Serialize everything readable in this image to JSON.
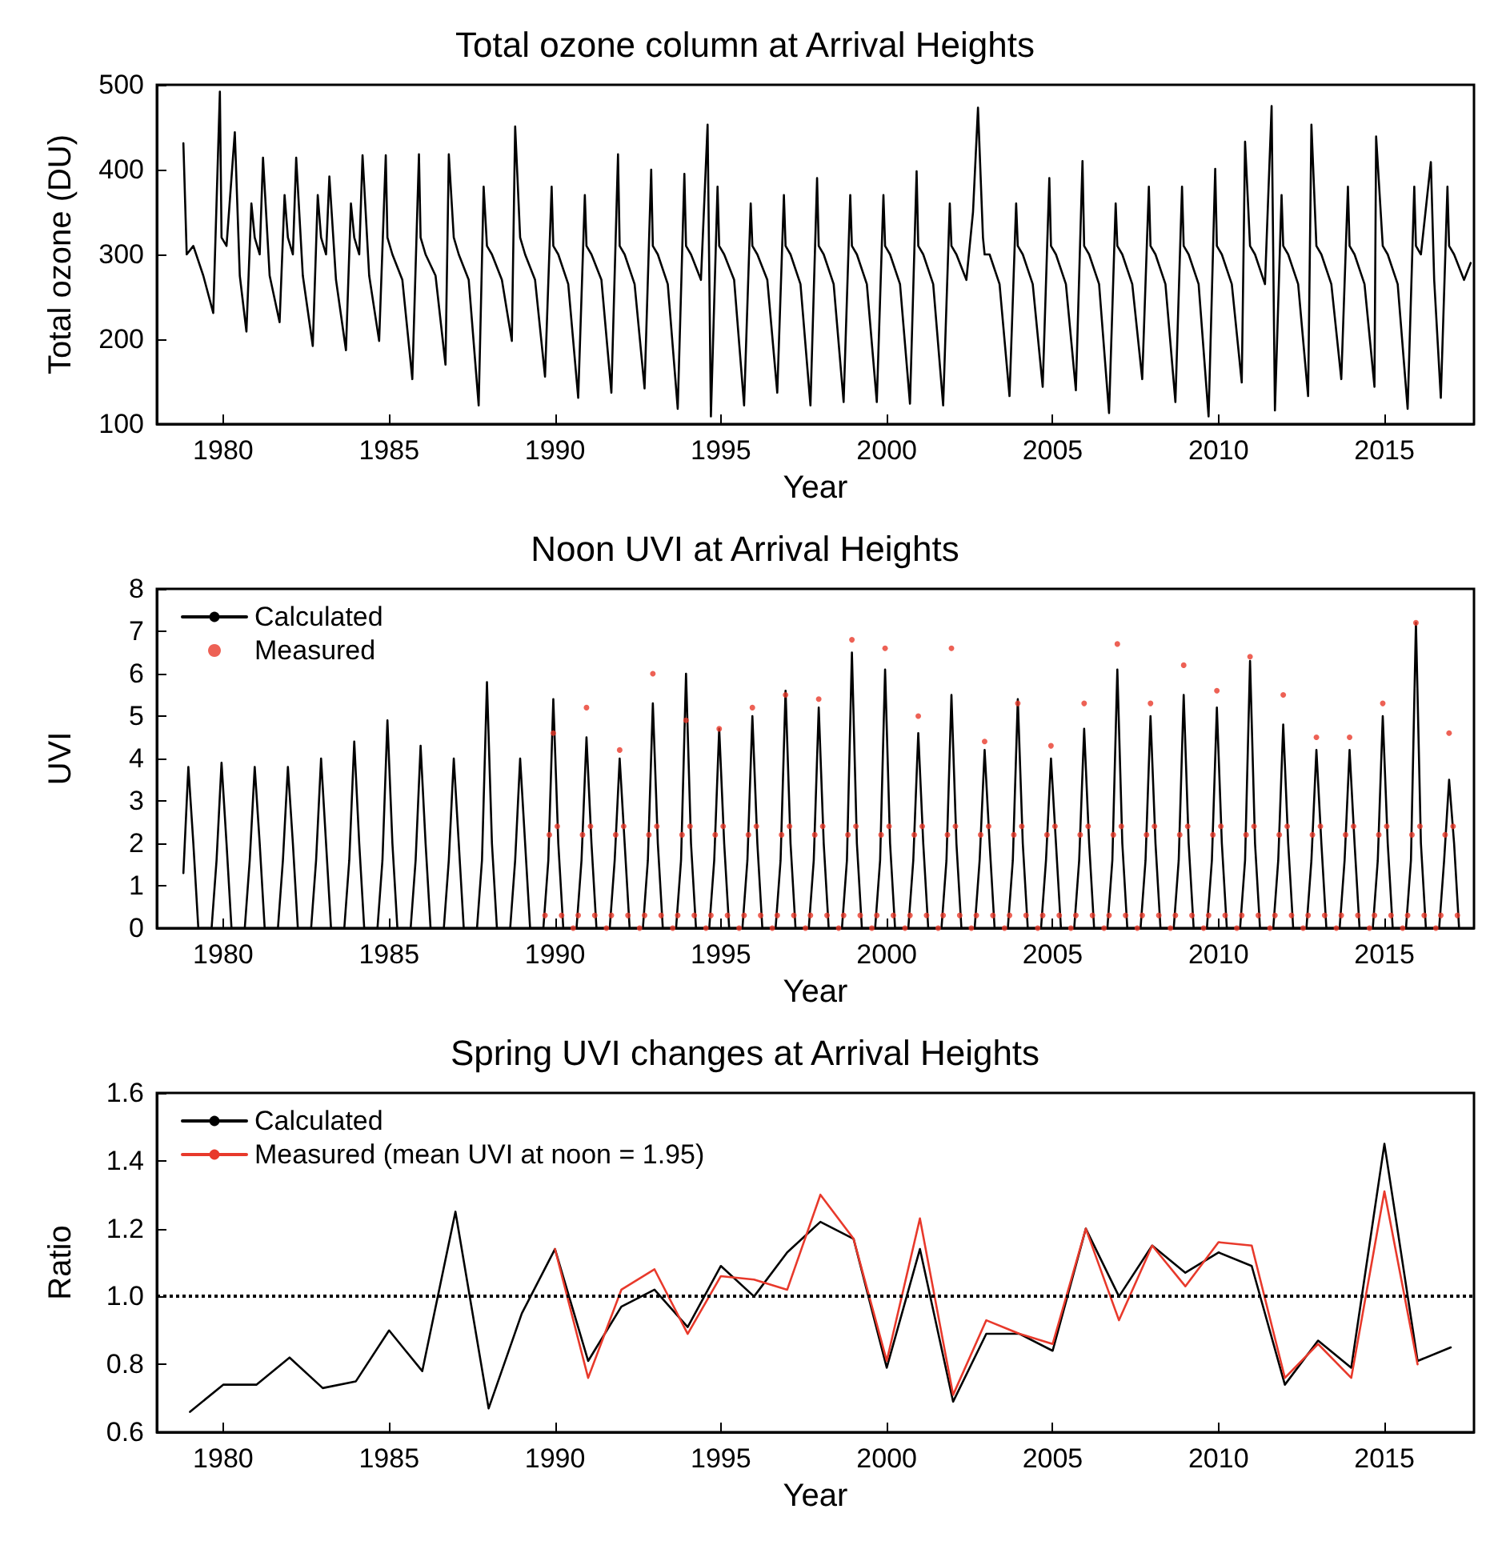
{
  "chart_data": [
    {
      "type": "line",
      "title": "Total ozone column at Arrival Heights",
      "xlabel": "Year",
      "ylabel": "Total ozone (DU)",
      "xlim": [
        1978,
        2017.7
      ],
      "xticks": [
        1980,
        1985,
        1990,
        1995,
        2000,
        2005,
        2010,
        2015
      ],
      "ylim": [
        100,
        500
      ],
      "yticks": [
        100,
        200,
        300,
        400,
        500
      ],
      "grid": false,
      "legend": false,
      "series": [
        {
          "color": "#000000",
          "x": [
            1978.8,
            1978.9,
            1979.1,
            1979.4,
            1979.7,
            1979.9,
            1979.95,
            1980.1,
            1980.35,
            1980.5,
            1980.7,
            1980.85,
            1980.95,
            1981.1,
            1981.2,
            1981.4,
            1981.7,
            1981.85,
            1981.95,
            1982.1,
            1982.2,
            1982.4,
            1982.7,
            1982.85,
            1982.95,
            1983.1,
            1983.2,
            1983.4,
            1983.7,
            1983.85,
            1983.95,
            1984.1,
            1984.2,
            1984.4,
            1984.7,
            1984.9,
            1984.95,
            1985.1,
            1985.4,
            1985.7,
            1985.9,
            1985.95,
            1986.1,
            1986.4,
            1986.7,
            1986.8,
            1986.95,
            1987.1,
            1987.4,
            1987.7,
            1987.85,
            1987.95,
            1988.1,
            1988.4,
            1988.7,
            1988.8,
            1988.95,
            1989.1,
            1989.4,
            1989.7,
            1989.9,
            1989.95,
            1990.1,
            1990.4,
            1990.7,
            1990.9,
            1990.95,
            1991.1,
            1991.4,
            1991.7,
            1991.9,
            1991.95,
            1992.1,
            1992.4,
            1992.7,
            1992.9,
            1992.95,
            1993.1,
            1993.4,
            1993.7,
            1993.9,
            1993.95,
            1994.1,
            1994.4,
            1994.6,
            1994.7,
            1994.9,
            1994.95,
            1995.1,
            1995.4,
            1995.7,
            1995.9,
            1995.95,
            1996.1,
            1996.4,
            1996.7,
            1996.9,
            1996.95,
            1997.1,
            1997.4,
            1997.7,
            1997.9,
            1997.95,
            1998.1,
            1998.4,
            1998.7,
            1998.9,
            1998.95,
            1999.1,
            1999.4,
            1999.7,
            1999.9,
            1999.95,
            2000.1,
            2000.4,
            2000.7,
            2000.9,
            2000.95,
            2001.1,
            2001.4,
            2001.7,
            2001.9,
            2001.95,
            2002.1,
            2002.4,
            2002.6,
            2002.75,
            2002.9,
            2002.95,
            2003.1,
            2003.4,
            2003.7,
            2003.9,
            2003.95,
            2004.1,
            2004.4,
            2004.7,
            2004.9,
            2004.95,
            2005.1,
            2005.4,
            2005.7,
            2005.9,
            2005.95,
            2006.1,
            2006.4,
            2006.7,
            2006.9,
            2006.95,
            2007.1,
            2007.4,
            2007.7,
            2007.9,
            2007.95,
            2008.1,
            2008.4,
            2008.7,
            2008.9,
            2008.95,
            2009.1,
            2009.4,
            2009.7,
            2009.9,
            2009.95,
            2010.1,
            2010.4,
            2010.7,
            2010.8,
            2010.95,
            2011.1,
            2011.4,
            2011.6,
            2011.7,
            2011.9,
            2011.95,
            2012.1,
            2012.4,
            2012.7,
            2012.8,
            2012.95,
            2013.1,
            2013.4,
            2013.7,
            2013.9,
            2013.95,
            2014.1,
            2014.4,
            2014.7,
            2014.75,
            2014.95,
            2015.1,
            2015.4,
            2015.7,
            2015.9,
            2015.95,
            2016.1,
            2016.4,
            2016.5,
            2016.7,
            2016.9,
            2016.95,
            2017.1,
            2017.4,
            2017.6
          ],
          "values": [
            431,
            300,
            310,
            275,
            231,
            492,
            320,
            310,
            444,
            275,
            209,
            360,
            320,
            300,
            414,
            275,
            220,
            370,
            320,
            300,
            414,
            275,
            192,
            370,
            320,
            300,
            392,
            270,
            187,
            360,
            320,
            300,
            417,
            275,
            198,
            417,
            320,
            300,
            270,
            153,
            418,
            320,
            300,
            275,
            170,
            418,
            320,
            300,
            270,
            122,
            380,
            310,
            300,
            270,
            198,
            451,
            320,
            300,
            270,
            156,
            380,
            310,
            300,
            265,
            131,
            370,
            310,
            300,
            270,
            137,
            418,
            310,
            300,
            265,
            142,
            400,
            310,
            300,
            265,
            118,
            395,
            310,
            300,
            270,
            453,
            109,
            380,
            310,
            300,
            270,
            122,
            360,
            310,
            300,
            270,
            137,
            370,
            310,
            300,
            265,
            122,
            390,
            310,
            300,
            265,
            126,
            370,
            310,
            300,
            265,
            126,
            370,
            310,
            300,
            265,
            124,
            398,
            310,
            300,
            265,
            122,
            360,
            310,
            300,
            270,
            350,
            473,
            320,
            300,
            300,
            265,
            133,
            360,
            310,
            300,
            265,
            144,
            390,
            310,
            300,
            265,
            140,
            410,
            310,
            300,
            265,
            113,
            360,
            310,
            300,
            265,
            153,
            380,
            310,
            300,
            265,
            126,
            380,
            310,
            300,
            265,
            109,
            401,
            310,
            300,
            265,
            149,
            433,
            310,
            300,
            265,
            475,
            116,
            370,
            310,
            300,
            265,
            133,
            453,
            310,
            300,
            265,
            153,
            380,
            310,
            300,
            265,
            144,
            439,
            310,
            300,
            265,
            118,
            380,
            310,
            300,
            409,
            270,
            131,
            380,
            310,
            300,
            270,
            290
          ]
        }
      ]
    },
    {
      "type": "line",
      "title": "Noon UVI at Arrival Heights",
      "xlabel": "Year",
      "ylabel": "UVI",
      "xlim": [
        1978,
        2017.7
      ],
      "xticks": [
        1980,
        1985,
        1990,
        1995,
        2000,
        2005,
        2010,
        2015
      ],
      "ylim": [
        0,
        8
      ],
      "yticks": [
        0,
        1,
        2,
        3,
        4,
        5,
        6,
        7,
        8
      ],
      "grid": false,
      "legend": "top left",
      "series": [
        {
          "name": "Calculated",
          "color": "#000000",
          "x": [
            1978.8,
            1978.95,
            1979.1,
            1979.25,
            1979.65,
            1979.8,
            1979.95,
            1980.1,
            1980.25,
            1980.65,
            1980.8,
            1980.95,
            1981.1,
            1981.25,
            1981.65,
            1981.8,
            1981.95,
            1982.1,
            1982.25,
            1982.65,
            1982.8,
            1982.95,
            1983.1,
            1983.25,
            1983.65,
            1983.8,
            1983.95,
            1984.1,
            1984.25,
            1984.65,
            1984.8,
            1984.95,
            1985.1,
            1985.25,
            1985.65,
            1985.8,
            1985.95,
            1986.1,
            1986.25,
            1986.65,
            1986.8,
            1986.95,
            1987.1,
            1987.25,
            1987.65,
            1987.8,
            1987.95,
            1988.1,
            1988.25,
            1988.65,
            1988.8,
            1988.95,
            1989.1,
            1989.25,
            1989.65,
            1989.8,
            1989.95,
            1990.1,
            1990.25,
            1990.65,
            1990.8,
            1990.95,
            1991.1,
            1991.25,
            1991.65,
            1991.8,
            1991.95,
            1992.1,
            1992.25,
            1992.65,
            1992.8,
            1992.95,
            1993.1,
            1993.25,
            1993.65,
            1993.8,
            1993.95,
            1994.1,
            1994.25,
            1994.65,
            1994.8,
            1994.95,
            1995.1,
            1995.25,
            1995.65,
            1995.8,
            1995.95,
            1996.1,
            1996.25,
            1996.65,
            1996.8,
            1996.95,
            1997.1,
            1997.25,
            1997.65,
            1997.8,
            1997.95,
            1998.1,
            1998.25,
            1998.65,
            1998.8,
            1998.95,
            1999.1,
            1999.25,
            1999.65,
            1999.8,
            1999.95,
            2000.1,
            2000.25,
            2000.65,
            2000.8,
            2000.95,
            2001.1,
            2001.25,
            2001.65,
            2001.8,
            2001.95,
            2002.1,
            2002.25,
            2002.65,
            2002.8,
            2002.95,
            2003.1,
            2003.25,
            2003.65,
            2003.8,
            2003.95,
            2004.1,
            2004.25,
            2004.65,
            2004.8,
            2004.95,
            2005.1,
            2005.25,
            2005.65,
            2005.8,
            2005.95,
            2006.1,
            2006.25,
            2006.65,
            2006.8,
            2006.95,
            2007.1,
            2007.25,
            2007.65,
            2007.8,
            2007.95,
            2008.1,
            2008.25,
            2008.65,
            2008.8,
            2008.95,
            2009.1,
            2009.25,
            2009.65,
            2009.8,
            2009.95,
            2010.1,
            2010.25,
            2010.65,
            2010.8,
            2010.95,
            2011.1,
            2011.25,
            2011.65,
            2011.8,
            2011.95,
            2012.1,
            2012.25,
            2012.65,
            2012.8,
            2012.95,
            2013.1,
            2013.25,
            2013.65,
            2013.8,
            2013.95,
            2014.1,
            2014.25,
            2014.65,
            2014.8,
            2014.95,
            2015.1,
            2015.25,
            2015.65,
            2015.8,
            2015.95,
            2016.1,
            2016.25,
            2016.65,
            2016.8,
            2016.95,
            2017.1,
            2017.25
          ],
          "values": [
            1.3,
            3.8,
            2,
            0,
            0,
            1.6,
            3.9,
            2,
            0,
            0,
            1.6,
            3.8,
            2,
            0,
            0,
            1.6,
            3.8,
            2,
            0,
            0,
            1.6,
            4,
            2,
            0,
            0,
            1.6,
            4.4,
            2,
            0,
            0,
            1.6,
            4.9,
            2,
            0,
            0,
            1.6,
            4.3,
            2,
            0,
            0,
            1.6,
            4,
            2,
            0,
            0,
            1.6,
            5.8,
            2,
            0,
            0,
            1.6,
            4,
            2,
            0,
            0,
            1.6,
            5.4,
            2,
            0,
            0,
            1.6,
            4.5,
            2,
            0,
            0,
            1.6,
            4,
            2,
            0,
            0,
            1.6,
            5.3,
            2,
            0,
            0,
            1.6,
            6,
            2,
            0,
            0,
            1.6,
            4.7,
            2,
            0,
            0,
            1.6,
            5,
            2,
            0,
            0,
            1.6,
            5.6,
            2,
            0,
            0,
            1.6,
            5.2,
            2,
            0,
            0,
            1.6,
            6.5,
            2,
            0,
            0,
            1.6,
            6.1,
            2,
            0,
            0,
            1.6,
            4.6,
            2,
            0,
            0,
            1.6,
            5.5,
            2,
            0,
            0,
            1.6,
            4.2,
            2,
            0,
            0,
            1.6,
            5.4,
            2,
            0,
            0,
            1.6,
            4,
            2,
            0,
            0,
            1.6,
            4.7,
            2,
            0,
            0,
            1.6,
            6.1,
            2,
            0,
            0,
            1.6,
            5,
            2,
            0,
            0,
            1.6,
            5.5,
            2,
            0,
            0,
            1.6,
            5.2,
            2,
            0,
            0,
            1.6,
            6.3,
            2,
            0,
            0,
            1.6,
            4.8,
            2,
            0,
            0,
            1.6,
            4.2,
            2,
            0,
            0,
            1.6,
            4.2,
            2,
            0,
            0,
            1.6,
            5,
            2,
            0,
            0,
            1.6,
            7.2,
            2,
            0,
            0,
            1.6,
            3.5,
            2,
            0
          ]
        },
        {
          "name": "Measured",
          "type": "scatter",
          "marker": "circle",
          "color": "#e8392b",
          "x": [
            1989.7,
            1989.83,
            1989.95,
            1990.07,
            1990.2,
            1990.55,
            1990.7,
            1990.83,
            1990.95,
            1991.07,
            1991.2,
            1991.55,
            1991.7,
            1991.83,
            1991.95,
            1992.07,
            1992.2,
            1992.55,
            1992.7,
            1992.83,
            1992.95,
            1993.07,
            1993.2,
            1993.55,
            1993.7,
            1993.83,
            1993.95,
            1994.07,
            1994.2,
            1994.55,
            1994.7,
            1994.83,
            1994.95,
            1995.07,
            1995.2,
            1995.55,
            1995.7,
            1995.83,
            1995.95,
            1996.07,
            1996.2,
            1996.55,
            1996.7,
            1996.83,
            1996.95,
            1997.07,
            1997.2,
            1997.55,
            1997.7,
            1997.83,
            1997.95,
            1998.07,
            1998.2,
            1998.55,
            1998.7,
            1998.83,
            1998.95,
            1999.07,
            1999.2,
            1999.55,
            1999.7,
            1999.83,
            1999.95,
            2000.07,
            2000.2,
            2000.55,
            2000.7,
            2000.83,
            2000.95,
            2001.07,
            2001.2,
            2001.55,
            2001.7,
            2001.83,
            2001.95,
            2002.07,
            2002.2,
            2002.55,
            2002.7,
            2002.83,
            2002.95,
            2003.07,
            2003.2,
            2003.55,
            2003.7,
            2003.83,
            2003.95,
            2004.07,
            2004.2,
            2004.55,
            2004.7,
            2004.83,
            2004.95,
            2005.07,
            2005.2,
            2005.55,
            2005.7,
            2005.83,
            2005.95,
            2006.07,
            2006.2,
            2006.55,
            2006.7,
            2006.83,
            2006.95,
            2007.07,
            2007.2,
            2007.55,
            2007.7,
            2007.83,
            2007.95,
            2008.07,
            2008.2,
            2008.55,
            2008.7,
            2008.83,
            2008.95,
            2009.07,
            2009.2,
            2009.55,
            2009.7,
            2009.83,
            2009.95,
            2010.07,
            2010.2,
            2010.55,
            2010.7,
            2010.83,
            2010.95,
            2011.07,
            2011.2,
            2011.55,
            2011.7,
            2011.83,
            2011.95,
            2012.07,
            2012.2,
            2012.55,
            2012.7,
            2012.83,
            2012.95,
            2013.07,
            2013.2,
            2013.55,
            2013.7,
            2013.83,
            2013.95,
            2014.07,
            2014.2,
            2014.55,
            2014.7,
            2014.83,
            2014.95,
            2015.07,
            2015.2,
            2015.55,
            2015.7,
            2015.83,
            2015.95,
            2016.07,
            2016.2,
            2016.55,
            2016.7,
            2016.83,
            2016.95,
            2017.07,
            2017.2
          ],
          "values": [
            0.3,
            2.2,
            4.6,
            2.4,
            0.3,
            0,
            0.3,
            2.2,
            5.2,
            2.4,
            0.3,
            0,
            0.3,
            2.2,
            4.2,
            2.4,
            0.3,
            0,
            0.3,
            2.2,
            6,
            2.4,
            0.3,
            0,
            0.3,
            2.2,
            4.9,
            2.4,
            0.3,
            0,
            0.3,
            2.2,
            4.7,
            2.4,
            0.3,
            0,
            0.3,
            2.2,
            5.2,
            2.4,
            0.3,
            0,
            0.3,
            2.2,
            5.5,
            2.4,
            0.3,
            0,
            0.3,
            2.2,
            5.4,
            2.4,
            0.3,
            0,
            0.3,
            2.2,
            6.8,
            2.4,
            0.3,
            0,
            0.3,
            2.2,
            6.6,
            2.4,
            0.3,
            0,
            0.3,
            2.2,
            5,
            2.4,
            0.3,
            0,
            0.3,
            2.2,
            6.6,
            2.4,
            0.3,
            0,
            0.3,
            2.2,
            4.4,
            2.4,
            0.3,
            0,
            0.3,
            2.2,
            5.3,
            2.4,
            0.3,
            0,
            0.3,
            2.2,
            4.3,
            2.4,
            0.3,
            0,
            0.3,
            2.2,
            5.3,
            2.4,
            0.3,
            0,
            0.3,
            2.2,
            6.7,
            2.4,
            0.3,
            0,
            0.3,
            2.2,
            5.3,
            2.4,
            0.3,
            0,
            0.3,
            2.2,
            6.2,
            2.4,
            0.3,
            0,
            0.3,
            2.2,
            5.6,
            2.4,
            0.3,
            0,
            0.3,
            2.2,
            6.4,
            2.4,
            0.3,
            0,
            0.3,
            2.2,
            5.5,
            2.4,
            0.3,
            0,
            0.3,
            2.2,
            4.5,
            2.4,
            0.3,
            0,
            0.3,
            2.2,
            4.5,
            2.4,
            0.3,
            0,
            0.3,
            2.2,
            5.3,
            2.4,
            0.3,
            0,
            0.3,
            2.2,
            7.2,
            2.4,
            0.3,
            0,
            0.3,
            2.2,
            4.6,
            2.4,
            0.3
          ]
        }
      ]
    },
    {
      "type": "line",
      "title": "Spring UVI changes at Arrival Heights",
      "xlabel": "Year",
      "ylabel": "Ratio",
      "xlim": [
        1978,
        2017.7
      ],
      "xticks": [
        1980,
        1985,
        1990,
        1995,
        2000,
        2005,
        2010,
        2015
      ],
      "ylim": [
        0.6,
        1.6
      ],
      "yticks": [
        {
          "value": 0.6,
          "label": "0.6"
        },
        {
          "value": 0.8,
          "label": "0.8"
        },
        {
          "value": 1,
          "label": "1.0"
        },
        {
          "value": 1.2,
          "label": "1.2"
        },
        {
          "value": 1.4,
          "label": "1.4"
        },
        {
          "value": 1.6,
          "label": "1.6"
        }
      ],
      "grid": false,
      "legend": "top left",
      "ref_lines": [
        {
          "axis": "y",
          "value": 1,
          "color": "#000000",
          "line_style": "dotted"
        }
      ],
      "series": [
        {
          "name": "Calculated",
          "color": "#000000",
          "x": [
            1979,
            1980,
            1981,
            1982,
            1983,
            1984,
            1985,
            1986,
            1987,
            1988,
            1989,
            1990,
            1991,
            1992,
            1993,
            1994,
            1995,
            1996,
            1997,
            1998,
            1999,
            2000,
            2001,
            2002,
            2003,
            2004,
            2005,
            2006,
            2007,
            2008,
            2009,
            2010,
            2011,
            2012,
            2013,
            2014,
            2015,
            2016,
            2017
          ],
          "values": [
            0.66,
            0.74,
            0.74,
            0.82,
            0.73,
            0.75,
            0.9,
            0.78,
            1.25,
            0.67,
            0.95,
            1.14,
            0.81,
            0.97,
            1.02,
            0.91,
            1.09,
            1,
            1.13,
            1.22,
            1.17,
            0.79,
            1.14,
            0.69,
            0.89,
            0.89,
            0.84,
            1.2,
            1,
            1.15,
            1.07,
            1.13,
            1.09,
            0.74,
            0.87,
            0.79,
            1.45,
            0.81,
            0.85
          ]
        },
        {
          "name": "Measured (mean UVI at noon = 1.95)",
          "color": "#e8392b",
          "x": [
            1990,
            1991,
            1992,
            1993,
            1994,
            1995,
            1996,
            1997,
            1998,
            1999,
            2000,
            2001,
            2002,
            2003,
            2004,
            2005,
            2006,
            2007,
            2008,
            2009,
            2010,
            2011,
            2012,
            2013,
            2014,
            2015,
            2016
          ],
          "values": [
            1.14,
            0.76,
            1.02,
            1.08,
            0.89,
            1.06,
            1.05,
            1.02,
            1.3,
            1.17,
            0.81,
            1.23,
            0.71,
            0.93,
            0.89,
            0.86,
            1.2,
            0.93,
            1.15,
            1.03,
            1.16,
            1.15,
            0.76,
            0.86,
            0.76,
            1.31,
            0.8
          ]
        }
      ]
    }
  ]
}
